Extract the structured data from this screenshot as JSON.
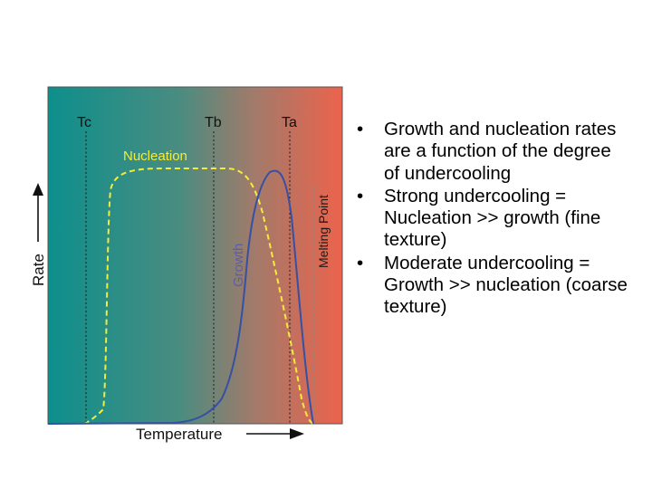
{
  "diagram": {
    "labels": {
      "tc": "Tc",
      "tb": "Tb",
      "ta": "Ta",
      "nucleation": "Nucleation",
      "growth": "Growth",
      "melting_point": "Melting Point",
      "y_axis": "Rate",
      "x_axis": "Temperature"
    },
    "colors": {
      "cool": "#0d8f8c",
      "hot": "#ec634c",
      "nucleation_curve": "#f4ec3c",
      "growth_curve": "#3550a4",
      "growth_label": "#5a5fa6"
    }
  },
  "bullets": [
    "Growth and nucleation rates are a function of the degree of undercooling",
    "Strong undercooling = Nucleation >> growth (fine texture)",
    "Moderate undercooling = Growth >> nucleation (coarse texture)"
  ]
}
